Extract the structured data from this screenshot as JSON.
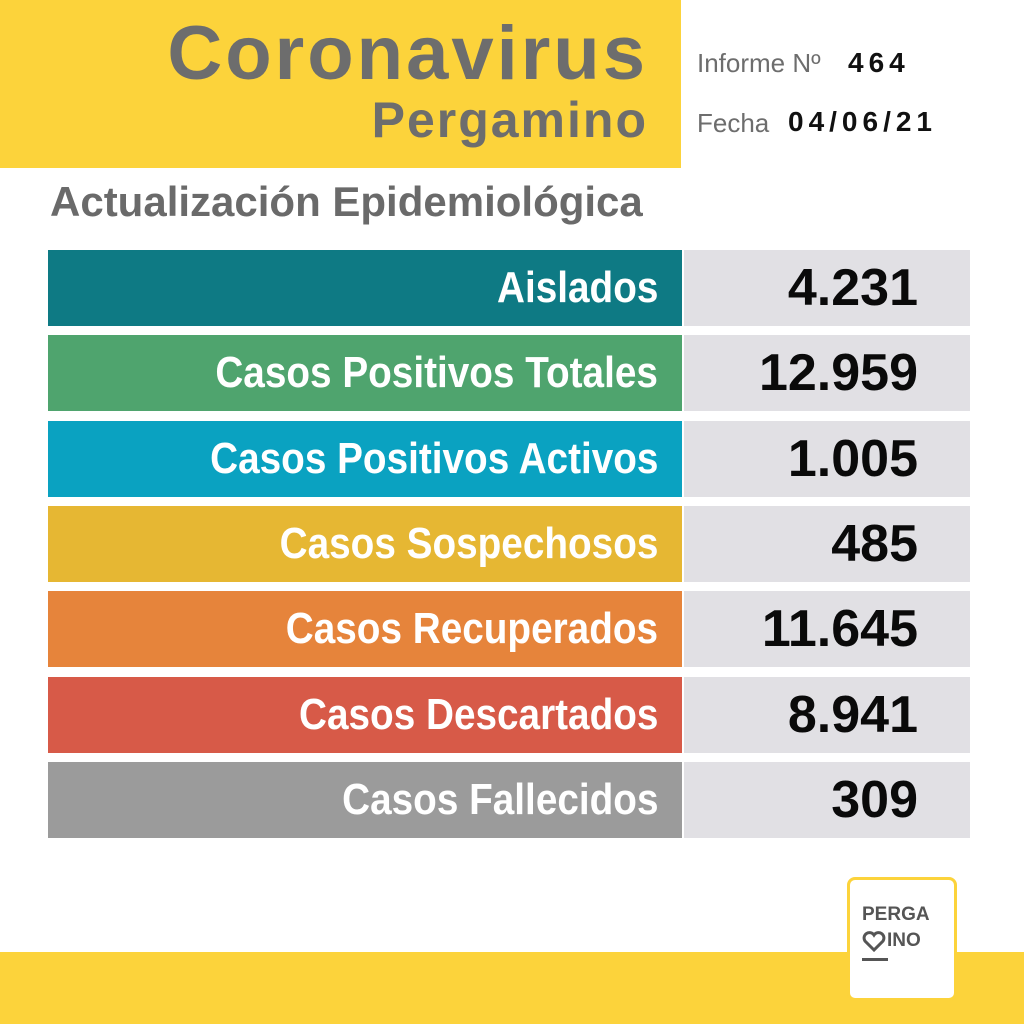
{
  "header": {
    "title": "Coronavirus",
    "subtitle": "Pergamino",
    "report_label": "Informe Nº",
    "report_number": "464",
    "date_label": "Fecha",
    "date": "04/06/21"
  },
  "section_title": "Actualización Epidemiológica",
  "rows": [
    {
      "label": "Aislados",
      "value": "4.231",
      "color": "#0e7a84"
    },
    {
      "label": "Casos Positivos Totales",
      "value": "12.959",
      "color": "#4fa46e"
    },
    {
      "label": "Casos Positivos Activos",
      "value": "1.005",
      "color": "#0aa2c1"
    },
    {
      "label": "Casos Sospechosos",
      "value": "485",
      "color": "#e6b733"
    },
    {
      "label": "Casos Recuperados",
      "value": "11.645",
      "color": "#e6843b"
    },
    {
      "label": "Casos Descartados",
      "value": "8.941",
      "color": "#d75a48"
    },
    {
      "label": "Casos Fallecidos",
      "value": "309",
      "color": "#9b9b9b"
    }
  ],
  "logo": {
    "line1": "PERGA",
    "line2": "INO"
  }
}
